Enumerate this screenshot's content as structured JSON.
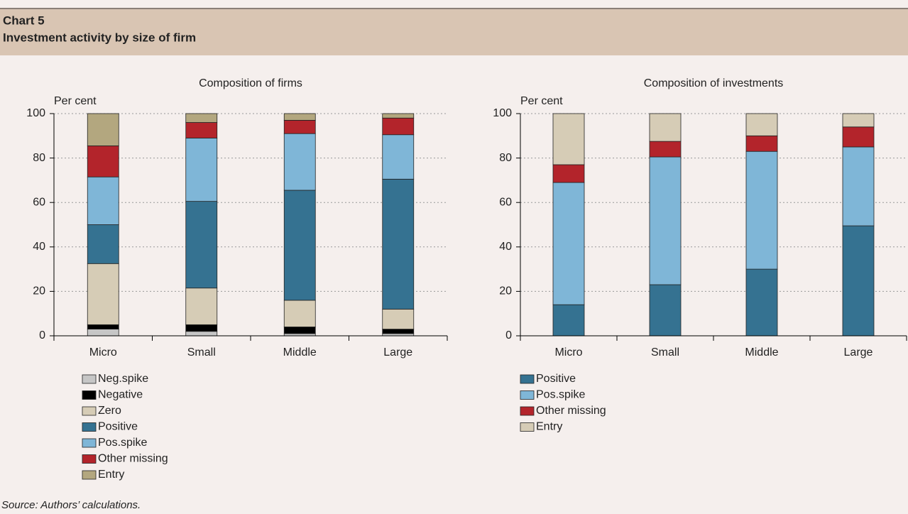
{
  "header": {
    "label": "Chart 5",
    "title": "Investment activity by size of firm"
  },
  "source": "Source: Authors’ calculations.",
  "chart_data": [
    {
      "type": "bar",
      "stacked": true,
      "title": "Composition of firms",
      "y_label": "Per cent",
      "categories": [
        "Micro",
        "Small",
        "Middle",
        "Large"
      ],
      "series": [
        {
          "name": "Neg.spike",
          "color": "#c6c6c6",
          "values": [
            3,
            2,
            1,
            1
          ]
        },
        {
          "name": "Negative",
          "color": "#000000",
          "values": [
            2,
            3,
            3,
            2
          ]
        },
        {
          "name": "Zero",
          "color": "#d6ccb6",
          "values": [
            27.5,
            16.5,
            12,
            9
          ]
        },
        {
          "name": "Positive",
          "color": "#357291",
          "values": [
            17.5,
            39,
            49.5,
            58.5
          ]
        },
        {
          "name": "Pos.spike",
          "color": "#7fb6d7",
          "values": [
            21.5,
            28.5,
            25.5,
            20
          ]
        },
        {
          "name": "Other missing",
          "color": "#b3242b",
          "values": [
            14,
            7,
            6,
            7.5
          ]
        },
        {
          "name": "Entry",
          "color": "#b3a77f",
          "values": [
            14.5,
            4,
            3,
            2
          ]
        }
      ],
      "ylim": [
        0,
        100
      ],
      "yticks": [
        0,
        20,
        40,
        60,
        80,
        100
      ],
      "grid": true
    },
    {
      "type": "bar",
      "stacked": true,
      "title": "Composition of investments",
      "y_label": "Per cent",
      "categories": [
        "Micro",
        "Small",
        "Middle",
        "Large"
      ],
      "series": [
        {
          "name": "Positive",
          "color": "#357291",
          "values": [
            14,
            23,
            30,
            49.5
          ]
        },
        {
          "name": "Pos.spike",
          "color": "#7fb6d7",
          "values": [
            55,
            57.5,
            53,
            35.5
          ]
        },
        {
          "name": "Other missing",
          "color": "#b3242b",
          "values": [
            8,
            7,
            7,
            9
          ]
        },
        {
          "name": "Entry",
          "color": "#d6ccb6",
          "values": [
            23,
            12.5,
            10,
            6
          ]
        }
      ],
      "ylim": [
        0,
        100
      ],
      "yticks": [
        0,
        20,
        40,
        60,
        80,
        100
      ],
      "grid": true
    }
  ]
}
